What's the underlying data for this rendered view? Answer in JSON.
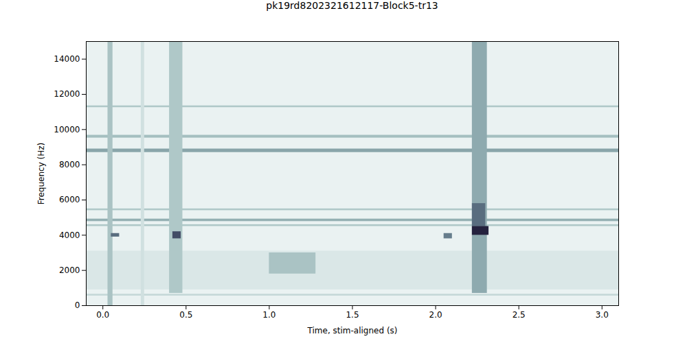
{
  "chart_data": {
    "type": "spectrogram",
    "title": "pk19rd8202321612117-Block5-tr13",
    "x_label": "Time, stim-aligned (s)",
    "y_label": "Frequency (Hz)",
    "xlim": [
      -0.1,
      3.1
    ],
    "ylim": [
      0,
      15000
    ],
    "xticks": [
      {
        "value": 0,
        "label": "0.0"
      },
      {
        "value": 0.5,
        "label": "0.5"
      },
      {
        "value": 1,
        "label": "1.0"
      },
      {
        "value": 1.5,
        "label": "1.5"
      },
      {
        "value": 2,
        "label": "2.0"
      },
      {
        "value": 2.5,
        "label": "2.5"
      },
      {
        "value": 3,
        "label": "3.0"
      }
    ],
    "yticks": [
      0,
      2000,
      4000,
      6000,
      8000,
      10000,
      12000,
      14000
    ],
    "power_range": [
      0,
      1
    ],
    "cells": [
      {
        "t0": -0.1,
        "t1": 3.1,
        "f0": 0,
        "f1": 15000,
        "power": 0.12
      },
      {
        "t0": -0.1,
        "t1": 3.1,
        "f0": 900,
        "f1": 3100,
        "power": 0.2
      },
      {
        "t0": -0.1,
        "t1": 3.1,
        "f0": 550,
        "f1": 650,
        "power": 0.3
      },
      {
        "t0": -0.1,
        "t1": 3.1,
        "f0": 11250,
        "f1": 11350,
        "power": 0.38
      },
      {
        "t0": -0.1,
        "t1": 3.1,
        "f0": 9520,
        "f1": 9680,
        "power": 0.42
      },
      {
        "t0": -0.1,
        "t1": 3.1,
        "f0": 8700,
        "f1": 8900,
        "power": 0.52
      },
      {
        "t0": -0.1,
        "t1": 3.1,
        "f0": 5400,
        "f1": 5500,
        "power": 0.38
      },
      {
        "t0": -0.1,
        "t1": 3.1,
        "f0": 4780,
        "f1": 4920,
        "power": 0.48
      },
      {
        "t0": -0.1,
        "t1": 3.1,
        "f0": 4500,
        "f1": 4600,
        "power": 0.38
      },
      {
        "t0": 0.03,
        "t1": 0.06,
        "f0": 0,
        "f1": 15000,
        "power": 0.4
      },
      {
        "t0": 0.23,
        "t1": 0.25,
        "f0": 0,
        "f1": 15000,
        "power": 0.25
      },
      {
        "t0": 0.4,
        "t1": 0.48,
        "f0": 700,
        "f1": 15000,
        "power": 0.38
      },
      {
        "t0": 2.22,
        "t1": 2.31,
        "f0": 700,
        "f1": 15000,
        "power": 0.5
      },
      {
        "t0": 1.0,
        "t1": 1.28,
        "f0": 1800,
        "f1": 3000,
        "power": 0.4
      },
      {
        "t0": 0.05,
        "t1": 0.1,
        "f0": 3900,
        "f1": 4100,
        "power": 0.7
      },
      {
        "t0": 0.42,
        "t1": 0.47,
        "f0": 3800,
        "f1": 4200,
        "power": 0.8
      },
      {
        "t0": 2.05,
        "t1": 2.1,
        "f0": 3800,
        "f1": 4100,
        "power": 0.65
      },
      {
        "t0": 2.22,
        "t1": 2.3,
        "f0": 4500,
        "f1": 5800,
        "power": 0.7
      },
      {
        "t0": 2.22,
        "t1": 2.32,
        "f0": 4000,
        "f1": 4500,
        "power": 0.95
      }
    ]
  }
}
